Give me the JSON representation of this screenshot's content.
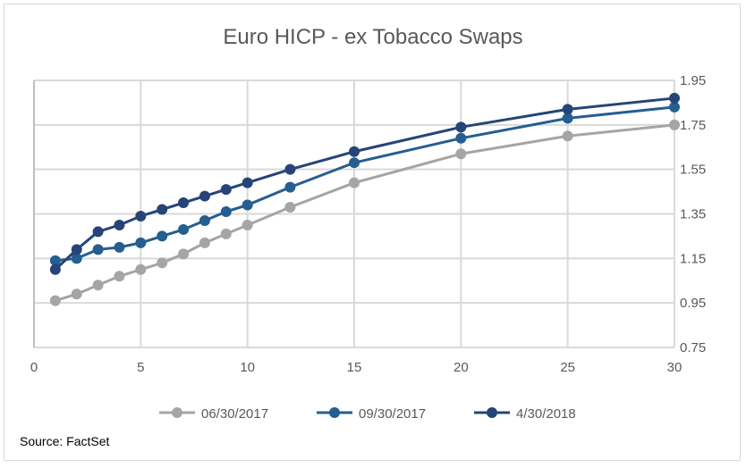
{
  "chart_data": {
    "type": "line",
    "title": "Euro HICP - ex Tobacco Swaps",
    "xlabel": "",
    "ylabel": "",
    "xlim": [
      0,
      30
    ],
    "ylim": [
      0.75,
      1.95
    ],
    "xticks": [
      0,
      5,
      10,
      15,
      20,
      25,
      30
    ],
    "yticks": [
      0.75,
      0.95,
      1.15,
      1.35,
      1.55,
      1.75,
      1.95
    ],
    "y_axis_side": "right",
    "grid": true,
    "legend_position": "bottom",
    "x": [
      1,
      2,
      3,
      4,
      5,
      6,
      7,
      8,
      9,
      10,
      12,
      15,
      20,
      25,
      30
    ],
    "series": [
      {
        "name": "06/30/2017",
        "color": "#a5a5a5",
        "values": [
          0.96,
          0.99,
          1.03,
          1.07,
          1.1,
          1.13,
          1.17,
          1.22,
          1.26,
          1.3,
          1.38,
          1.49,
          1.62,
          1.7,
          1.75
        ]
      },
      {
        "name": "09/30/2017",
        "color": "#255e91",
        "values": [
          1.14,
          1.15,
          1.19,
          1.2,
          1.22,
          1.25,
          1.28,
          1.32,
          1.36,
          1.39,
          1.47,
          1.58,
          1.69,
          1.78,
          1.83
        ]
      },
      {
        "name": "4/30/2018",
        "color": "#264478",
        "values": [
          1.1,
          1.19,
          1.27,
          1.3,
          1.34,
          1.37,
          1.4,
          1.43,
          1.46,
          1.49,
          1.55,
          1.63,
          1.74,
          1.82,
          1.87
        ]
      }
    ]
  },
  "source": "Source: FactSet"
}
